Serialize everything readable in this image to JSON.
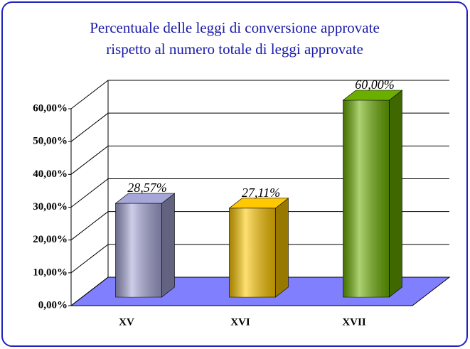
{
  "chart_data": {
    "type": "bar3d",
    "title": [
      "Percentuale delle leggi di conversione approvate",
      "rispetto al numero totale di leggi approvate"
    ],
    "categories": [
      "XV",
      "XVI",
      "XVII"
    ],
    "values": [
      28.57,
      27.11,
      60
    ],
    "value_labels": [
      "28,57%",
      "27,11%",
      "60,00%"
    ],
    "colors": [
      "#a6a6d8",
      "#ffc800",
      "#6aae00"
    ],
    "floor_color": "#8080ff",
    "ylim": [
      0,
      60
    ],
    "yticks": [
      {
        "value": 0,
        "label": "0,00%"
      },
      {
        "value": 10,
        "label": "10,00%"
      },
      {
        "value": 20,
        "label": "20,00%"
      },
      {
        "value": 30,
        "label": "30,00%"
      },
      {
        "value": 40,
        "label": "40,00%"
      },
      {
        "value": 50,
        "label": "50,00%"
      },
      {
        "value": 60,
        "label": "60,00%"
      }
    ],
    "grid": true
  }
}
